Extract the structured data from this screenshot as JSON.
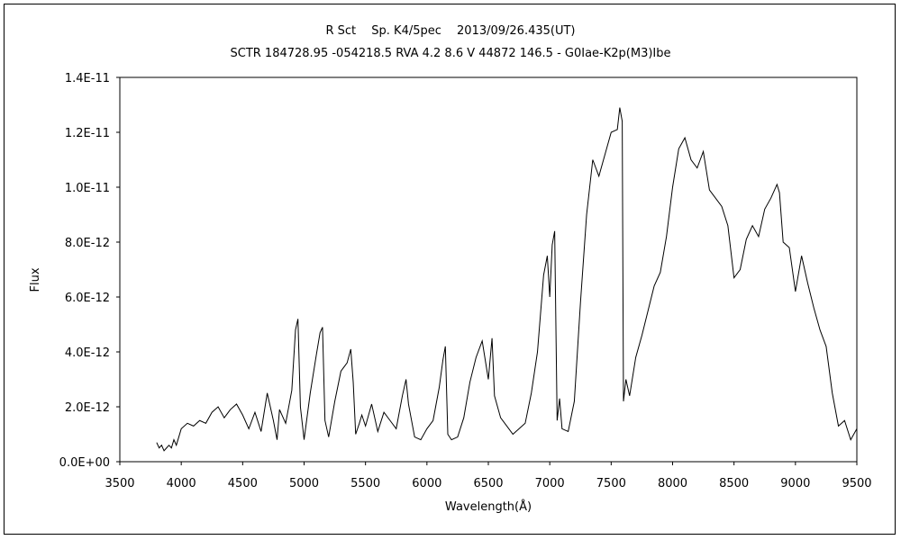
{
  "chart_data": {
    "type": "line",
    "title": "R Sct　 Sp. K4/5pec　 2013/09/26.435(UT)",
    "subtitle": "SCTR 184728.95 -054218.5 RVA 4.2 8.6 V 44872 146.5 - G0Iae-K2p(M3)Ibe",
    "xlabel": "Wavelength(Å)",
    "ylabel": "Flux",
    "xlim": [
      3500,
      9500
    ],
    "ylim": [
      0,
      1.4e-11
    ],
    "grid": false,
    "legend": "none",
    "line_color": "#000000",
    "x_ticks": [
      "3500",
      "4000",
      "4500",
      "5000",
      "5500",
      "6000",
      "6500",
      "7000",
      "7500",
      "8000",
      "8500",
      "9000",
      "9500"
    ],
    "y_ticks": [
      "0.0E+00",
      "2.0E-12",
      "4.0E-12",
      "6.0E-12",
      "8.0E-12",
      "1.0E-11",
      "1.2E-11",
      "1.4E-11"
    ],
    "series": [
      {
        "x": [
          3800,
          3820,
          3840,
          3860,
          3880,
          3900,
          3920,
          3940,
          3960,
          3980,
          4000,
          4050,
          4100,
          4150,
          4200,
          4250,
          4300,
          4350,
          4400,
          4450,
          4500,
          4550,
          4600,
          4650,
          4700,
          4750,
          4780,
          4800,
          4850,
          4900,
          4930,
          4950,
          4970,
          5000,
          5050,
          5100,
          5130,
          5150,
          5170,
          5200,
          5250,
          5300,
          5350,
          5380,
          5400,
          5420,
          5450,
          5470,
          5500,
          5550,
          5600,
          5650,
          5700,
          5750,
          5800,
          5830,
          5850,
          5900,
          5950,
          6000,
          6050,
          6100,
          6130,
          6150,
          6170,
          6200,
          6250,
          6300,
          6350,
          6400,
          6450,
          6500,
          6530,
          6550,
          6600,
          6650,
          6700,
          6750,
          6800,
          6850,
          6900,
          6950,
          6980,
          7000,
          7020,
          7040,
          7060,
          7080,
          7100,
          7150,
          7200,
          7250,
          7300,
          7350,
          7400,
          7450,
          7500,
          7550,
          7570,
          7590,
          7600,
          7620,
          7650,
          7700,
          7750,
          7800,
          7850,
          7900,
          7950,
          8000,
          8050,
          8100,
          8150,
          8200,
          8250,
          8300,
          8350,
          8400,
          8450,
          8500,
          8550,
          8600,
          8650,
          8700,
          8750,
          8800,
          8850,
          8870,
          8900,
          8950,
          9000,
          9050,
          9100,
          9150,
          9200,
          9250,
          9300,
          9350,
          9400,
          9450,
          9500
        ],
        "y": [
          7e-13,
          5e-13,
          6e-13,
          4e-13,
          5e-13,
          6e-13,
          5e-13,
          8e-13,
          6e-13,
          9e-13,
          1.2e-12,
          1.4e-12,
          1.3e-12,
          1.5e-12,
          1.4e-12,
          1.8e-12,
          2e-12,
          1.6e-12,
          1.9e-12,
          2.1e-12,
          1.7e-12,
          1.2e-12,
          1.8e-12,
          1.1e-12,
          2.5e-12,
          1.5e-12,
          8e-13,
          1.9e-12,
          1.4e-12,
          2.6e-12,
          4.8e-12,
          5.2e-12,
          2e-12,
          8e-13,
          2.5e-12,
          3.9e-12,
          4.7e-12,
          4.9e-12,
          1.5e-12,
          9e-13,
          2.2e-12,
          3.3e-12,
          3.6e-12,
          4.1e-12,
          2.9e-12,
          1e-12,
          1.4e-12,
          1.7e-12,
          1.3e-12,
          2.1e-12,
          1.1e-12,
          1.8e-12,
          1.5e-12,
          1.2e-12,
          2.4e-12,
          3e-12,
          2.1e-12,
          9e-13,
          8e-13,
          1.2e-12,
          1.5e-12,
          2.7e-12,
          3.7e-12,
          4.2e-12,
          1e-12,
          8e-13,
          9e-13,
          1.6e-12,
          2.9e-12,
          3.8e-12,
          4.4e-12,
          3e-12,
          4.5e-12,
          2.4e-12,
          1.6e-12,
          1.3e-12,
          1e-12,
          1.2e-12,
          1.4e-12,
          2.5e-12,
          4e-12,
          6.8e-12,
          7.5e-12,
          6e-12,
          7.9e-12,
          8.4e-12,
          1.5e-12,
          2.3e-12,
          1.2e-12,
          1.1e-12,
          2.2e-12,
          5.8e-12,
          9e-12,
          1.1e-11,
          1.04e-11,
          1.12e-11,
          1.2e-11,
          1.21e-11,
          1.29e-11,
          1.24e-11,
          2.2e-12,
          3e-12,
          2.4e-12,
          3.8e-12,
          4.6e-12,
          5.5e-12,
          6.4e-12,
          6.9e-12,
          8.2e-12,
          1e-11,
          1.14e-11,
          1.18e-11,
          1.1e-11,
          1.07e-11,
          1.13e-11,
          9.9e-12,
          9.6e-12,
          9.3e-12,
          8.6e-12,
          6.7e-12,
          7e-12,
          8.1e-12,
          8.6e-12,
          8.2e-12,
          9.2e-12,
          9.6e-12,
          1.01e-11,
          9.8e-12,
          8e-12,
          7.8e-12,
          6.2e-12,
          7.5e-12,
          6.5e-12,
          5.6e-12,
          4.8e-12,
          4.2e-12,
          2.5e-12,
          1.3e-12,
          1.5e-12,
          8e-13,
          1.2e-12
        ]
      }
    ]
  }
}
